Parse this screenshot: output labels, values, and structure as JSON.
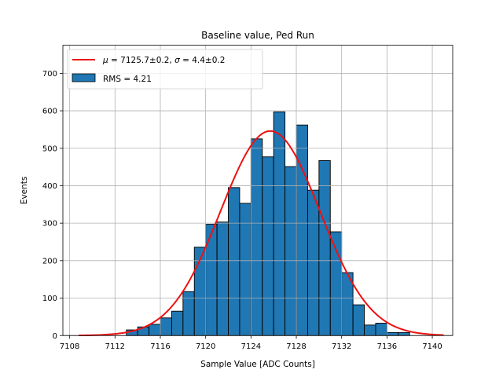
{
  "chart_data": {
    "type": "bar",
    "title": "Baseline value, Ped Run",
    "xlabel": "Sample Value [ADC Counts]",
    "ylabel": "Events",
    "xlim": [
      7107.4,
      7141.8
    ],
    "ylim": [
      0,
      775
    ],
    "xticks": [
      7108,
      7112,
      7116,
      7120,
      7124,
      7128,
      7132,
      7136,
      7140
    ],
    "yticks": [
      0,
      100,
      200,
      300,
      400,
      500,
      600,
      700
    ],
    "grid": true,
    "legend_position": "top-left",
    "bin_width": 1,
    "histogram": {
      "name": "RMS = 4.21",
      "color": "#1f77b4",
      "edge_color": "#000000",
      "bin_start": [
        7113,
        7114,
        7115,
        7116,
        7117,
        7118,
        7119,
        7120,
        7121,
        7122,
        7123,
        7124,
        7125,
        7126,
        7127,
        7128,
        7129,
        7130,
        7131,
        7132,
        7133,
        7134,
        7135,
        7136,
        7137
      ],
      "counts": [
        15,
        23,
        30,
        47,
        65,
        117,
        236,
        297,
        303,
        395,
        353,
        525,
        477,
        597,
        451,
        562,
        388,
        467,
        277,
        168,
        82,
        28,
        33,
        8,
        8
      ]
    },
    "fit": {
      "name": "$\\mu = 7125.7{\\pm}0.2$, $\\sigma = 4.4{\\pm}0.2$",
      "legend_mu_label": "μ",
      "legend_mu_text": " = 7125.7±0.2, ",
      "legend_sigma_label": "σ",
      "legend_sigma_text": " = 4.4±0.2",
      "type": "gaussian",
      "mu": 7125.7,
      "sigma": 4.4,
      "amplitude": 546,
      "x_range": [
        7108.8,
        7141
      ],
      "color": "#ee1111"
    }
  }
}
